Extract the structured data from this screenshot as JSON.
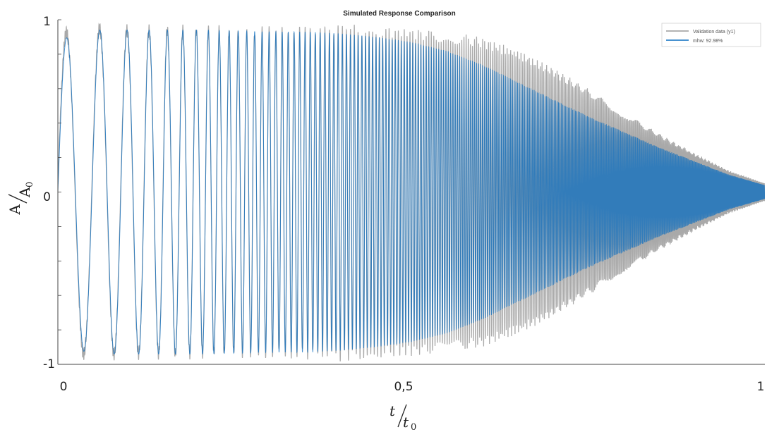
{
  "chart_data": {
    "type": "line",
    "title": "Simulated Response Comparison",
    "xlabel": {
      "main": "t",
      "sub_main": "t",
      "sub": "0"
    },
    "ylabel": {
      "main": "A",
      "sub_main": "A",
      "sub": "0"
    },
    "xlim": [
      0,
      1
    ],
    "ylim": [
      -1,
      1
    ],
    "x_ticks": [
      0,
      0.5,
      1
    ],
    "x_tick_labels": [
      "0",
      "0,5",
      "1"
    ],
    "y_ticks": [
      -1,
      0,
      1
    ],
    "y_tick_labels": [
      "-1",
      "0",
      "1"
    ],
    "grid": false,
    "legend_position": "top-right",
    "series": [
      {
        "name": "Validation data (y1)",
        "color": "#9a9a9a",
        "envelope_x": [
          0,
          0.05,
          0.1,
          0.2,
          0.3,
          0.35,
          0.4,
          0.45,
          0.5,
          0.55,
          0.6,
          0.65,
          0.7,
          0.75,
          0.8,
          0.85,
          0.9,
          0.95,
          1.0
        ],
        "envelope_amp": [
          0.92,
          0.95,
          0.94,
          0.94,
          0.93,
          0.94,
          0.95,
          0.93,
          0.92,
          0.9,
          0.87,
          0.8,
          0.7,
          0.58,
          0.45,
          0.33,
          0.22,
          0.12,
          0.05
        ]
      },
      {
        "name": "mhw: 92.98%",
        "color": "#0b6ec0",
        "envelope_x": [
          0,
          0.05,
          0.1,
          0.2,
          0.3,
          0.35,
          0.4,
          0.45,
          0.5,
          0.55,
          0.6,
          0.65,
          0.7,
          0.75,
          0.8,
          0.85,
          0.9,
          0.95,
          1.0
        ],
        "envelope_amp": [
          0.88,
          0.94,
          0.94,
          0.94,
          0.93,
          0.93,
          0.92,
          0.9,
          0.87,
          0.82,
          0.74,
          0.64,
          0.54,
          0.44,
          0.35,
          0.26,
          0.18,
          0.1,
          0.04
        ]
      }
    ]
  }
}
